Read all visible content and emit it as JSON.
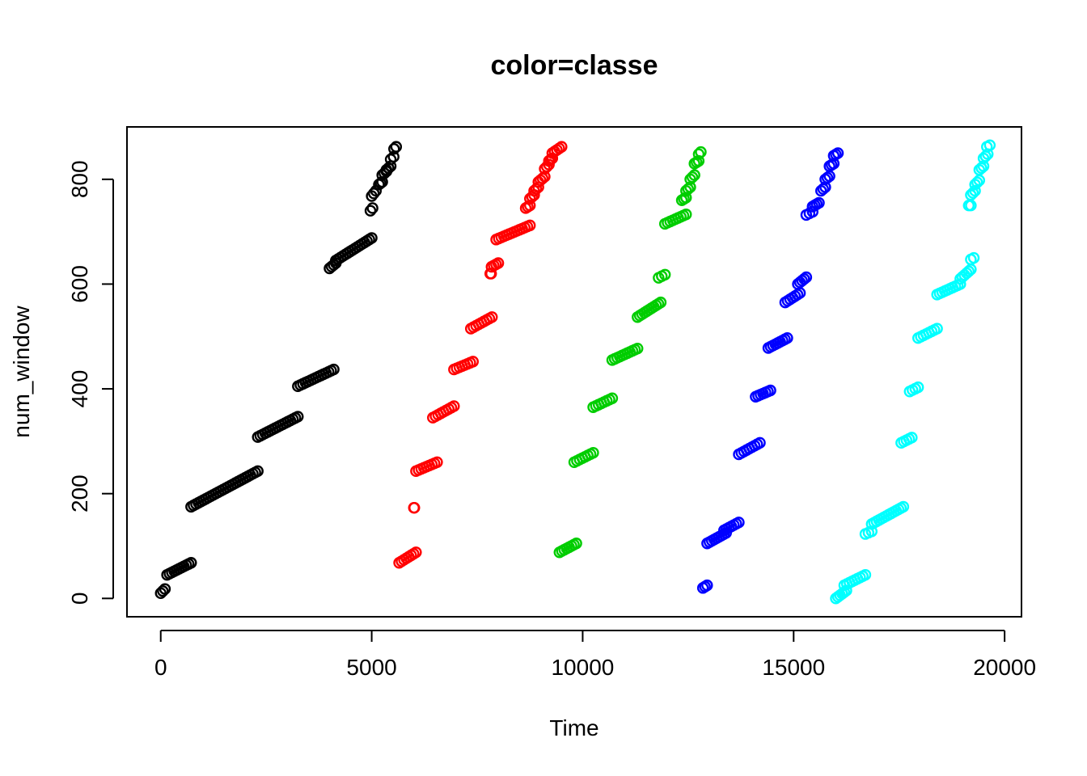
{
  "chart_data": {
    "type": "scatter",
    "title": "color=classe",
    "xlabel": "Time",
    "ylabel": "num_window",
    "xlim": [
      -800,
      20400
    ],
    "ylim": [
      -35,
      900
    ],
    "xticks": [
      0,
      5000,
      10000,
      15000,
      20000
    ],
    "yticks": [
      0,
      200,
      400,
      600,
      800
    ],
    "xtick_labels": [
      "0",
      "5000",
      "10000",
      "15000",
      "20000"
    ],
    "ytick_labels": [
      "0",
      "200",
      "400",
      "600",
      "800"
    ],
    "grid": false,
    "legend": false,
    "marker": "open-circle",
    "series": [
      {
        "color": "#000000",
        "segments": [
          [
            0,
            100,
            10,
            18
          ],
          [
            150,
            720,
            45,
            68
          ],
          [
            720,
            2300,
            175,
            243
          ],
          [
            2300,
            3250,
            308,
            347
          ],
          [
            3250,
            4100,
            405,
            437
          ],
          [
            4000,
            4150,
            630,
            640
          ],
          [
            4150,
            5000,
            645,
            688
          ],
          [
            4970,
            5020,
            740,
            745
          ],
          [
            5000,
            5100,
            768,
            778
          ],
          [
            5170,
            5250,
            790,
            795
          ],
          [
            5250,
            5350,
            808,
            815
          ],
          [
            5350,
            5450,
            818,
            825
          ],
          [
            5450,
            5520,
            838,
            843
          ],
          [
            5530,
            5580,
            858,
            862
          ]
        ]
      },
      {
        "color": "#ff0000",
        "segments": [
          [
            5650,
            6050,
            68,
            88
          ],
          [
            6000,
            6010,
            173,
            173
          ],
          [
            6050,
            6550,
            243,
            260
          ],
          [
            6450,
            6950,
            345,
            367
          ],
          [
            6950,
            7400,
            437,
            452
          ],
          [
            7350,
            7850,
            515,
            537
          ],
          [
            7810,
            7830,
            620,
            620
          ],
          [
            7840,
            8000,
            633,
            640
          ],
          [
            7950,
            8750,
            685,
            712
          ],
          [
            8650,
            8750,
            745,
            750
          ],
          [
            8750,
            8850,
            763,
            770
          ],
          [
            8850,
            8950,
            778,
            785
          ],
          [
            8950,
            9100,
            795,
            805
          ],
          [
            9100,
            9200,
            820,
            828
          ],
          [
            9200,
            9280,
            835,
            840
          ],
          [
            9280,
            9500,
            850,
            862
          ]
        ]
      },
      {
        "color": "#00cd00",
        "segments": [
          [
            9450,
            9850,
            88,
            105
          ],
          [
            9800,
            10250,
            260,
            278
          ],
          [
            10250,
            10700,
            365,
            382
          ],
          [
            10700,
            11300,
            455,
            477
          ],
          [
            11300,
            11850,
            537,
            565
          ],
          [
            11800,
            11950,
            612,
            618
          ],
          [
            11950,
            12450,
            715,
            733
          ],
          [
            12350,
            12450,
            760,
            765
          ],
          [
            12450,
            12550,
            778,
            785
          ],
          [
            12550,
            12650,
            800,
            808
          ],
          [
            12650,
            12750,
            830,
            835
          ],
          [
            12750,
            12800,
            848,
            852
          ]
        ]
      },
      {
        "color": "#0000ff",
        "segments": [
          [
            12850,
            12950,
            20,
            25
          ],
          [
            12950,
            13400,
            105,
            125
          ],
          [
            13350,
            13700,
            130,
            145
          ],
          [
            13700,
            14200,
            275,
            297
          ],
          [
            14100,
            14450,
            385,
            397
          ],
          [
            14400,
            14850,
            478,
            497
          ],
          [
            14800,
            15150,
            565,
            583
          ],
          [
            15100,
            15300,
            600,
            613
          ],
          [
            15300,
            15450,
            732,
            738
          ],
          [
            15450,
            15600,
            748,
            755
          ],
          [
            15650,
            15750,
            778,
            785
          ],
          [
            15750,
            15850,
            800,
            806
          ],
          [
            15850,
            15950,
            825,
            830
          ],
          [
            15950,
            16050,
            845,
            850
          ]
        ]
      },
      {
        "color": "#00ffff",
        "segments": [
          [
            16000,
            16250,
            0,
            15
          ],
          [
            16200,
            16700,
            25,
            45
          ],
          [
            16700,
            16850,
            123,
            128
          ],
          [
            16850,
            17600,
            142,
            175
          ],
          [
            17550,
            17800,
            297,
            307
          ],
          [
            17750,
            17950,
            395,
            403
          ],
          [
            17950,
            18400,
            497,
            515
          ],
          [
            18400,
            18950,
            580,
            600
          ],
          [
            18950,
            19200,
            610,
            628
          ],
          [
            19200,
            19270,
            647,
            650
          ],
          [
            19150,
            19200,
            750,
            750
          ],
          [
            19200,
            19300,
            770,
            778
          ],
          [
            19300,
            19400,
            790,
            798
          ],
          [
            19400,
            19500,
            818,
            825
          ],
          [
            19500,
            19600,
            840,
            848
          ],
          [
            19580,
            19650,
            862,
            865
          ]
        ]
      }
    ]
  }
}
